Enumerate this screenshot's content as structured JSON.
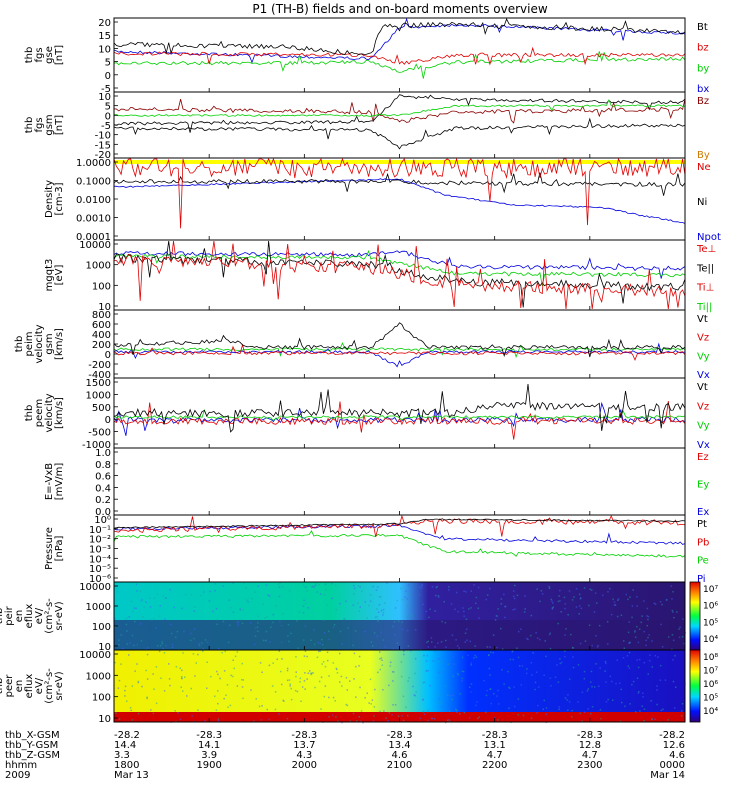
{
  "title": "P1 (TH-B) fields and on-board moments overview",
  "colors": {
    "black": "#000000",
    "red": "#e00000",
    "green": "#00d000",
    "blue": "#0000e0",
    "darkred": "#8b0000",
    "orange": "#cc7a00",
    "yellow": "#ffff00",
    "navy": "#000080"
  },
  "panels": [
    {
      "id": "fgs-gse",
      "ylabel": [
        "thb",
        "fgs",
        "gse",
        "[nT]"
      ],
      "yticks": [
        "20",
        "15",
        "10",
        "5",
        "0",
        "-5"
      ],
      "legend": [
        {
          "label": "Bt",
          "color": "#000000"
        },
        {
          "label": "bz",
          "color": "#e00000"
        },
        {
          "label": "by",
          "color": "#00d000"
        },
        {
          "label": "bx",
          "color": "#0000e0"
        }
      ]
    },
    {
      "id": "fgs-gsm",
      "ylabel": [
        "thb",
        "fgs",
        "gsm",
        "[nT]"
      ],
      "yticks": [
        "10",
        "5",
        "0",
        "-5",
        "-10",
        "-15",
        "-20"
      ],
      "legend": [
        {
          "label": "Bz",
          "color": "#8b0000"
        },
        {
          "label": "By",
          "color": "#cc7a00"
        }
      ]
    },
    {
      "id": "density",
      "ylabel": [
        "Density",
        "[cm-3]"
      ],
      "yticks": [
        "1.0000",
        "0.1000",
        "0.0100",
        "0.0010",
        "0.0001"
      ],
      "legend": [
        {
          "label": "Ne",
          "color": "#e00000"
        },
        {
          "label": "Ni",
          "color": "#000000"
        },
        {
          "label": "Npot",
          "color": "#0000e0"
        }
      ]
    },
    {
      "id": "temperature",
      "ylabel": [
        "mgqt3",
        "[eV]"
      ],
      "yticks": [
        "10000",
        "1000",
        "100",
        "10"
      ],
      "legend": [
        {
          "label": "Te⊥",
          "color": "#e00000"
        },
        {
          "label": "Te||",
          "color": "#000000"
        },
        {
          "label": "Ti⊥",
          "color": "#e00000"
        },
        {
          "label": "Ti||",
          "color": "#00d000"
        }
      ]
    },
    {
      "id": "peim-velocity",
      "ylabel": [
        "thb",
        "peim",
        "velocity",
        "gsm",
        "[km/s]"
      ],
      "yticks": [
        "800",
        "600",
        "400",
        "200",
        "0",
        "-200",
        "-400"
      ],
      "legend": [
        {
          "label": "Vt",
          "color": "#000000"
        },
        {
          "label": "Vz",
          "color": "#e00000"
        },
        {
          "label": "Vy",
          "color": "#00d000"
        },
        {
          "label": "Vx",
          "color": "#0000e0"
        }
      ]
    },
    {
      "id": "peem-velocity",
      "ylabel": [
        "thb",
        "peem",
        "velocity",
        "[km/s]"
      ],
      "yticks": [
        "1500",
        "1000",
        "500",
        "0",
        "-500",
        "-1000"
      ],
      "legend": [
        {
          "label": "Vt",
          "color": "#000000"
        },
        {
          "label": "Vz",
          "color": "#e00000"
        },
        {
          "label": "Vy",
          "color": "#00d000"
        },
        {
          "label": "Vx",
          "color": "#0000e0"
        }
      ]
    },
    {
      "id": "efield",
      "ylabel": [
        "E=-VxB",
        "[mV/m]"
      ],
      "yticks": [
        "1.0",
        "0.8",
        "0.6",
        "0.4",
        "0.2",
        "0.0"
      ],
      "legend": [
        {
          "label": "Ez",
          "color": "#e00000"
        },
        {
          "label": "Ey",
          "color": "#00d000"
        },
        {
          "label": "Ex",
          "color": "#0000e0"
        }
      ]
    },
    {
      "id": "pressure",
      "ylabel": [
        "Pressure",
        "[nPa]"
      ],
      "yticks": [
        "10⁰",
        "10⁻¹",
        "10⁻²",
        "10⁻³",
        "10⁻⁴",
        "10⁻⁵",
        "10⁻⁶"
      ],
      "legend": [
        {
          "label": "Pt",
          "color": "#000000"
        },
        {
          "label": "Pb",
          "color": "#e00000"
        },
        {
          "label": "Pe",
          "color": "#00d000"
        },
        {
          "label": "Pi",
          "color": "#0000e0"
        }
      ]
    },
    {
      "id": "peir-eflux",
      "ylabel": [
        "thb",
        "peir",
        "en",
        "eflux",
        "eV/",
        "(cm²-s-",
        "sr-eV)"
      ],
      "yticks": [
        "10000",
        "1000",
        "100",
        "10"
      ],
      "colorbar": [
        "10⁷",
        "10⁶",
        "10⁵",
        "10⁴"
      ]
    },
    {
      "id": "peer-eflux",
      "ylabel": [
        "thb",
        "peer",
        "en",
        "eflux",
        "eV/",
        "(cm²-s-",
        "sr-eV)"
      ],
      "yticks": [
        "10000",
        "1000",
        "100",
        "10"
      ],
      "colorbar": [
        "10⁸",
        "10⁷",
        "10⁶",
        "10⁵",
        "10⁴"
      ]
    }
  ],
  "xaxis": {
    "row_labels": [
      "thb_X-GSM",
      "thb_Y-GSM",
      "thb_Z-GSM",
      "hhmm",
      "2009"
    ],
    "columns": [
      {
        "x": "-28.2",
        "y": "14.4",
        "z": "3.3",
        "hhmm": "1800",
        "date": "Mar 13"
      },
      {
        "x": "-28.3",
        "y": "14.1",
        "z": "3.9",
        "hhmm": "1900",
        "date": ""
      },
      {
        "x": "-28.3",
        "y": "13.7",
        "z": "4.3",
        "hhmm": "2000",
        "date": ""
      },
      {
        "x": "-28.3",
        "y": "13.4",
        "z": "4.6",
        "hhmm": "2100",
        "date": ""
      },
      {
        "x": "-28.3",
        "y": "13.1",
        "z": "4.7",
        "hhmm": "2200",
        "date": ""
      },
      {
        "x": "-28.3",
        "y": "12.8",
        "z": "4.7",
        "hhmm": "2300",
        "date": ""
      },
      {
        "x": "-28.2",
        "y": "12.6",
        "z": "4.6",
        "hhmm": "0000",
        "date": "Mar 14"
      }
    ]
  },
  "chart_data": [
    {
      "type": "line",
      "title": "P1 (TH-B) fields and on-board moments overview",
      "ylabel": "thb fgs gse [nT]",
      "ylim": [
        -8,
        20
      ],
      "x": [
        "1800",
        "1900",
        "2000",
        "2100",
        "2200",
        "2300",
        "0000"
      ],
      "series": [
        {
          "name": "Bt",
          "values": [
            8,
            8,
            6,
            15,
            14,
            12,
            10
          ]
        },
        {
          "name": "bz",
          "values": [
            3,
            3,
            2,
            -2,
            1,
            2,
            2
          ]
        },
        {
          "name": "by",
          "values": [
            -4,
            -4,
            -3,
            -6,
            -4,
            -3,
            -3
          ]
        },
        {
          "name": "bx",
          "values": [
            5,
            4,
            3,
            14,
            13,
            12,
            10
          ]
        }
      ]
    },
    {
      "type": "line",
      "ylabel": "thb fgs gsm [nT]",
      "ylim": [
        -22,
        10
      ],
      "x": [
        "1800",
        "1900",
        "2000",
        "2100",
        "2200",
        "2300",
        "0000"
      ],
      "series": [
        {
          "name": "Bz",
          "values": [
            4,
            4,
            3,
            -2,
            1,
            2,
            2
          ]
        },
        {
          "name": "By",
          "values": [
            -4,
            -5,
            -4,
            -14,
            -8,
            -7,
            -7
          ]
        }
      ]
    },
    {
      "type": "line",
      "ylabel": "Density [cm-3]",
      "ylim": [
        0.0001,
        1
      ],
      "x": [
        "1800",
        "1900",
        "2000",
        "2100",
        "2200",
        "2300",
        "0000"
      ],
      "series": [
        {
          "name": "Ne",
          "values": [
            0.6,
            0.6,
            0.6,
            0.4,
            0.5,
            0.5,
            0.5
          ]
        },
        {
          "name": "Ni",
          "values": [
            0.12,
            0.12,
            0.1,
            0.08,
            0.06,
            0.05,
            0.05
          ]
        },
        {
          "name": "Npot",
          "values": [
            0.06,
            0.06,
            0.07,
            0.08,
            0.005,
            0.004,
            0.002
          ]
        }
      ]
    },
    {
      "type": "line",
      "ylabel": "mgqt3 [eV]",
      "ylim": [
        10,
        10000
      ],
      "x": [
        "1800",
        "1900",
        "2000",
        "2100",
        "2200",
        "2300",
        "0000"
      ],
      "series": [
        {
          "name": "Te⊥",
          "values": [
            2000,
            1500,
            1000,
            500,
            100,
            100,
            100
          ]
        },
        {
          "name": "Te||",
          "values": [
            2500,
            1800,
            1200,
            600,
            150,
            150,
            150
          ]
        },
        {
          "name": "Ti⊥",
          "values": [
            3000,
            2500,
            2000,
            1500,
            400,
            400,
            400
          ]
        },
        {
          "name": "Ti||",
          "values": [
            2500,
            2200,
            1800,
            1300,
            300,
            300,
            300
          ]
        }
      ]
    },
    {
      "type": "line",
      "ylabel": "thb peim velocity gsm [km/s]",
      "ylim": [
        -450,
        850
      ],
      "x": [
        "1800",
        "1900",
        "2000",
        "2100",
        "2200",
        "2300",
        "0000"
      ],
      "series": [
        {
          "name": "Vt",
          "values": [
            60,
            150,
            50,
            300,
            30,
            30,
            30
          ]
        },
        {
          "name": "Vz",
          "values": [
            0,
            0,
            0,
            -50,
            0,
            0,
            0
          ]
        },
        {
          "name": "Vy",
          "values": [
            20,
            40,
            10,
            100,
            10,
            10,
            10
          ]
        },
        {
          "name": "Vx",
          "values": [
            0,
            0,
            0,
            -200,
            0,
            0,
            0
          ]
        }
      ]
    },
    {
      "type": "line",
      "ylabel": "thb peem velocity [km/s]",
      "ylim": [
        -1300,
        1700
      ],
      "x": [
        "1800",
        "1900",
        "2000",
        "2100",
        "2200",
        "2300",
        "0000"
      ],
      "series": [
        {
          "name": "Vt",
          "values": [
            200,
            400,
            100,
            500,
            300,
            300,
            200
          ]
        },
        {
          "name": "Vz",
          "values": [
            -100,
            -100,
            -50,
            -200,
            -200,
            -200,
            -100
          ]
        },
        {
          "name": "Vy",
          "values": [
            50,
            50,
            20,
            100,
            100,
            100,
            50
          ]
        },
        {
          "name": "Vx",
          "values": [
            -50,
            -50,
            -20,
            -300,
            -200,
            -200,
            -100
          ]
        }
      ]
    },
    {
      "type": "line",
      "ylabel": "E=-VxB [mV/m]",
      "ylim": [
        0,
        1
      ],
      "series": [
        {
          "name": "Ez",
          "values": []
        },
        {
          "name": "Ey",
          "values": []
        },
        {
          "name": "Ex",
          "values": []
        }
      ]
    },
    {
      "type": "line",
      "ylabel": "Pressure [nPa]",
      "ylim": [
        1e-06,
        1
      ],
      "x": [
        "1800",
        "1900",
        "2000",
        "2100",
        "2200",
        "2300",
        "0000"
      ],
      "series": [
        {
          "name": "Pt",
          "values": [
            0.03,
            0.04,
            0.05,
            0.1,
            0.08,
            0.06,
            0.05
          ]
        },
        {
          "name": "Pb",
          "values": [
            0.02,
            0.025,
            0.03,
            0.1,
            0.08,
            0.06,
            0.05
          ]
        },
        {
          "name": "Pe",
          "values": [
            0.005,
            0.004,
            0.004,
            0.003,
            0.0005,
            0.0004,
            0.0003
          ]
        },
        {
          "name": "Pi",
          "values": [
            0.02,
            0.02,
            0.02,
            0.02,
            0.003,
            0.003,
            0.003
          ]
        }
      ]
    },
    {
      "type": "heatmap",
      "ylabel": "thb peir en eflux eV/(cm2-s-sr-eV)",
      "ylim": [
        10,
        20000
      ],
      "colorbar": [
        10000.0,
        10000000.0
      ]
    },
    {
      "type": "heatmap",
      "ylabel": "thb peer en eflux eV/(cm2-s-sr-eV)",
      "ylim": [
        10,
        20000
      ],
      "colorbar": [
        10000.0,
        100000000.0
      ]
    }
  ]
}
